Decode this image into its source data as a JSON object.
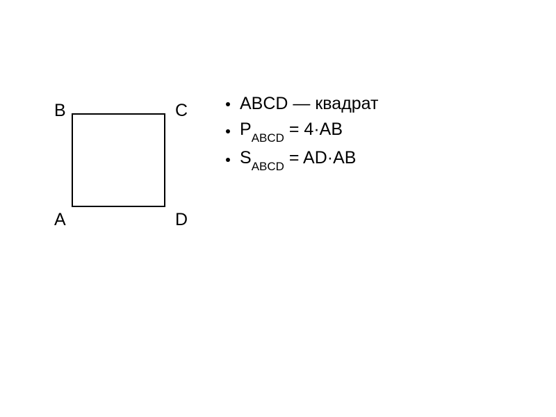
{
  "diagram": {
    "vertices": {
      "b": "B",
      "c": "C",
      "a": "A",
      "d": "D"
    },
    "square_border_color": "#000000",
    "square_border_width": 2
  },
  "formulas": {
    "line1": {
      "text": "ABCD — квадрат"
    },
    "line2": {
      "prefix": "P",
      "subscript": "ABCD",
      "rest": " = 4·AB"
    },
    "line3": {
      "prefix": "S",
      "subscript": "ABCD",
      "rest": " = AD·AB"
    }
  },
  "style": {
    "font_size": 25,
    "sub_font_size": 17,
    "text_color": "#000000",
    "bullet_color": "#000000",
    "background": "#ffffff"
  }
}
